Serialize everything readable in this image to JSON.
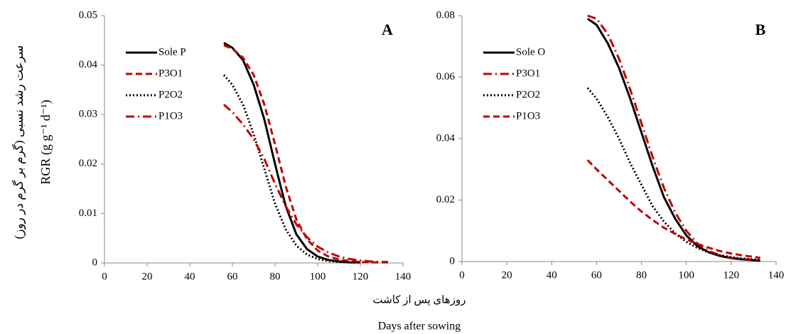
{
  "labels": {
    "y_persian": "سرعت رشد نسبی (گرم بر گرم در روز)",
    "y_english": "RGR (g g⁻¹ d⁻¹)",
    "x_persian": "روزهای پس از کاشت",
    "x_english": "Days after sowing"
  },
  "chart_data": [
    {
      "type": "line",
      "title": "A",
      "xlim": [
        0,
        140
      ],
      "xticks": [
        0,
        20,
        40,
        60,
        80,
        100,
        120,
        140
      ],
      "ylim": [
        0,
        0.05
      ],
      "yticks": [
        0,
        0.01,
        0.02,
        0.03,
        0.04,
        0.05
      ],
      "grid": false,
      "legend": "upper left",
      "x": [
        56,
        60,
        65,
        70,
        75,
        80,
        85,
        90,
        95,
        100,
        105,
        110,
        115,
        120,
        125,
        130,
        133
      ],
      "series": [
        {
          "name": "Sole P",
          "color": "#000000",
          "dash": "solid",
          "values": [
            0.0445,
            0.0435,
            0.041,
            0.036,
            0.029,
            0.02,
            0.0115,
            0.0058,
            0.0028,
            0.0013,
            0.0006,
            0.0003,
            0.0001,
            0.0001,
            null,
            null,
            null
          ]
        },
        {
          "name": "P3O1",
          "color": "#c00000",
          "dash": "dashed",
          "values": [
            0.044,
            0.0433,
            0.0415,
            0.038,
            0.032,
            0.024,
            0.0155,
            0.0088,
            0.0048,
            0.0025,
            0.0013,
            0.0007,
            0.0004,
            0.0002,
            0.0001,
            0.0001,
            0.0001
          ]
        },
        {
          "name": "P2O2",
          "color": "#000000",
          "dash": "dotted",
          "values": [
            0.038,
            0.036,
            0.032,
            0.026,
            0.019,
            0.012,
            0.0068,
            0.0035,
            0.0017,
            0.0008,
            0.0004,
            0.0002,
            0.0001,
            0.0001,
            null,
            null,
            null
          ]
        },
        {
          "name": "P1O3",
          "color": "#c00000",
          "dash": "dashdot",
          "values": [
            0.032,
            0.0305,
            0.028,
            0.025,
            0.021,
            0.016,
            0.0115,
            0.0078,
            0.0052,
            0.0033,
            0.0021,
            0.0013,
            0.0008,
            0.0005,
            0.0003,
            0.0002,
            0.0002
          ]
        }
      ]
    },
    {
      "type": "line",
      "title": "B",
      "xlim": [
        0,
        140
      ],
      "xticks": [
        0,
        20,
        40,
        60,
        80,
        100,
        120,
        140
      ],
      "ylim": [
        0,
        0.08
      ],
      "yticks": [
        0,
        0.02,
        0.04,
        0.06,
        0.08
      ],
      "grid": false,
      "legend": "upper left",
      "x": [
        56,
        60,
        65,
        70,
        75,
        80,
        85,
        90,
        95,
        100,
        105,
        110,
        115,
        120,
        125,
        130,
        133
      ],
      "series": [
        {
          "name": "Sole O",
          "color": "#000000",
          "dash": "solid",
          "values": [
            0.079,
            0.077,
            0.071,
            0.063,
            0.053,
            0.042,
            0.031,
            0.021,
            0.014,
            0.0085,
            0.005,
            0.003,
            0.0018,
            0.0011,
            0.0007,
            0.0004,
            0.0003
          ]
        },
        {
          "name": "P3O1",
          "color": "#c00000",
          "dash": "dashdot",
          "values": [
            0.08,
            0.079,
            0.074,
            0.066,
            0.056,
            0.045,
            0.034,
            0.024,
            0.016,
            0.01,
            0.0058,
            0.0034,
            0.002,
            0.0012,
            0.0008,
            0.0005,
            0.0003
          ]
        },
        {
          "name": "P2O2",
          "color": "#000000",
          "dash": "dotted",
          "values": [
            0.0565,
            0.053,
            0.047,
            0.04,
            0.032,
            0.025,
            0.018,
            0.013,
            0.0092,
            0.0064,
            0.0044,
            0.003,
            0.0021,
            0.0014,
            0.001,
            0.0007,
            0.0005
          ]
        },
        {
          "name": "P1O3",
          "color": "#c00000",
          "dash": "dashed",
          "values": [
            0.033,
            0.03,
            0.0265,
            0.023,
            0.0195,
            0.0163,
            0.0135,
            0.011,
            0.009,
            0.0072,
            0.0057,
            0.0045,
            0.0034,
            0.0026,
            0.002,
            0.0015,
            0.0012
          ]
        }
      ]
    }
  ]
}
